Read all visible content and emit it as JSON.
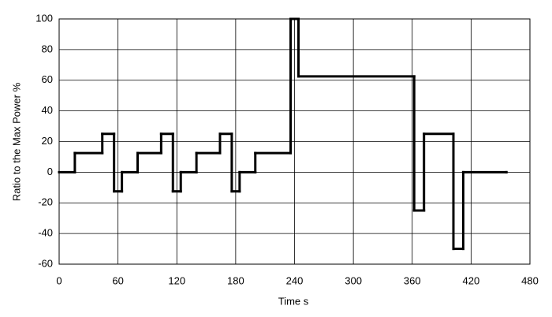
{
  "chart_data": {
    "type": "line",
    "step": "post",
    "grid": true,
    "color": "#000000",
    "xlabel": "Time  s",
    "ylabel": "Ratio to the Max Power  %",
    "xlim": [
      0,
      480
    ],
    "xticks": [
      0,
      60,
      120,
      180,
      240,
      300,
      360,
      420,
      480
    ],
    "ylim": [
      -60,
      100
    ],
    "yticks": [
      -60,
      -40,
      -20,
      0,
      20,
      40,
      60,
      80,
      100
    ],
    "x": [
      0,
      16,
      44,
      56,
      64,
      80,
      104,
      116,
      124,
      140,
      164,
      176,
      184,
      200,
      236,
      244,
      362,
      372,
      402,
      412,
      456
    ],
    "series": [
      {
        "color": "#000000",
        "values": [
          0,
          12.5,
          25,
          -12.5,
          0,
          12.5,
          25,
          -12.5,
          0,
          12.5,
          25,
          -12.5,
          0,
          12.5,
          100,
          62.5,
          -25,
          25,
          -50,
          0,
          0
        ]
      }
    ]
  }
}
